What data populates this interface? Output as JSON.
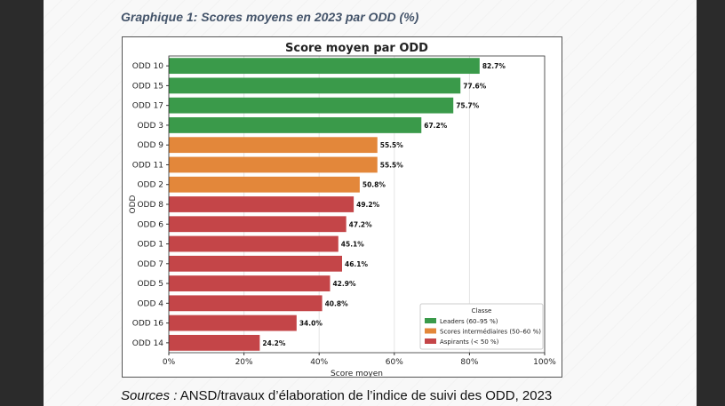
{
  "caption": "Graphique 1: Scores moyens en 2023 par ODD (%)",
  "source": {
    "label": "Sources :",
    "text": " ANSD/travaux d’élaboration de l’indice de suivi des ODD, 2023"
  },
  "chart_data": {
    "type": "bar",
    "orientation": "horizontal",
    "title": "Score moyen par ODD",
    "xlabel": "Score moyen",
    "ylabel": "ODD",
    "xlim": [
      0,
      100
    ],
    "xticks": [
      "0%",
      "20%",
      "40%",
      "60%",
      "80%",
      "100%"
    ],
    "grid": "vertical",
    "categories": [
      "ODD 10",
      "ODD 15",
      "ODD 17",
      "ODD 3",
      "ODD 9",
      "ODD 11",
      "ODD 2",
      "ODD 8",
      "ODD 6",
      "ODD 1",
      "ODD 7",
      "ODD 5",
      "ODD 4",
      "ODD 16",
      "ODD 14"
    ],
    "values": [
      82.7,
      77.6,
      75.7,
      67.2,
      55.5,
      55.5,
      50.8,
      49.2,
      47.2,
      45.1,
      46.1,
      42.9,
      40.8,
      34.0,
      24.2
    ],
    "labels": [
      "82.7%",
      "77.6%",
      "75.7%",
      "67.2%",
      "55.5%",
      "55.5%",
      "50.8%",
      "49.2%",
      "47.2%",
      "45.1%",
      "46.1%",
      "42.9%",
      "40.8%",
      "34.0%",
      "24.2%"
    ],
    "classes": [
      0,
      0,
      0,
      0,
      1,
      1,
      1,
      2,
      2,
      2,
      2,
      2,
      2,
      2,
      2
    ],
    "legend": {
      "title": "Classe",
      "placement": "bottom-right",
      "entries": [
        {
          "name": "Leaders (60–95 %)",
          "color": "#3a9a4a"
        },
        {
          "name": "Scores intermédiaires (50–60 %)",
          "color": "#e3873a"
        },
        {
          "name": "Aspirants (< 50 %)",
          "color": "#c44548"
        }
      ]
    }
  }
}
